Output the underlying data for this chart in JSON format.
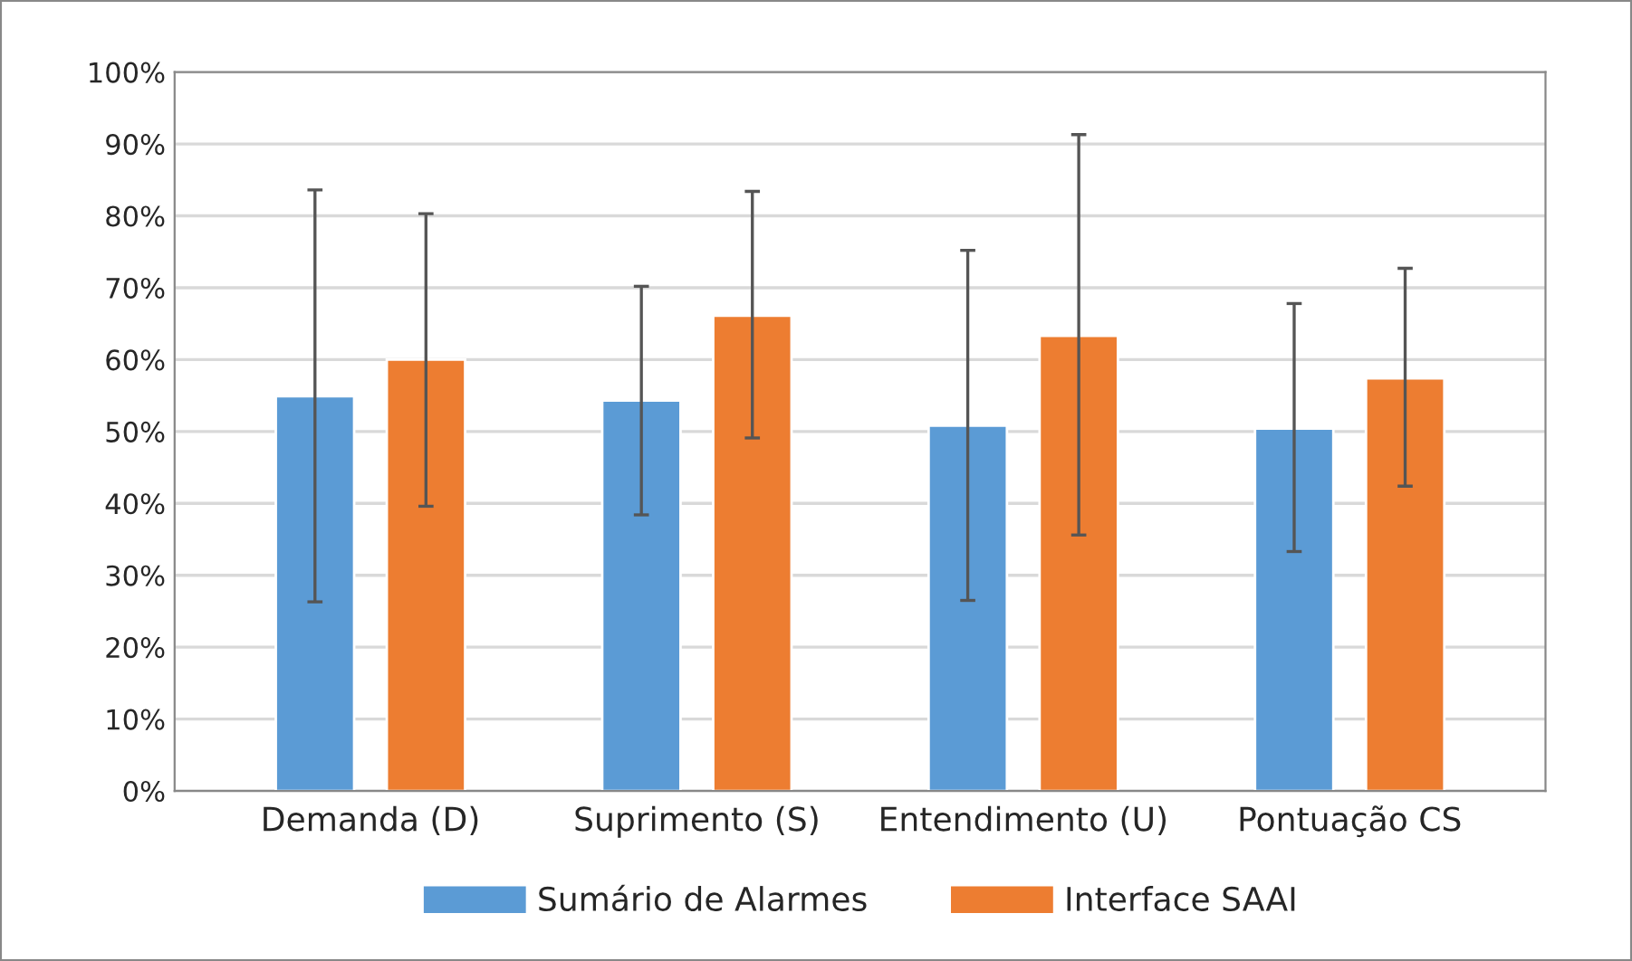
{
  "chart_data": {
    "type": "bar",
    "categories": [
      "Demanda (D)",
      "Suprimento (S)",
      "Entendimento (U)",
      "Pontuação CS"
    ],
    "series": [
      {
        "name": "Sumário de Alarmes",
        "color": "#5b9bd5",
        "values": [
          54.9,
          54.3,
          50.8,
          50.4
        ],
        "errors": [
          [
            26.3,
            83.6
          ],
          [
            38.4,
            70.2
          ],
          [
            26.5,
            75.2
          ],
          [
            33.3,
            67.8
          ]
        ]
      },
      {
        "name": "Interface SAAI",
        "color": "#ed7d31",
        "values": [
          60.0,
          66.1,
          63.3,
          57.4
        ],
        "errors": [
          [
            39.6,
            80.3
          ],
          [
            49.1,
            83.4
          ],
          [
            35.6,
            91.3
          ],
          [
            42.4,
            72.7
          ]
        ]
      }
    ],
    "ylim": [
      0,
      100
    ],
    "yticks": [
      {
        "value": 0,
        "label": "0%"
      },
      {
        "value": 10,
        "label": "10%"
      },
      {
        "value": 20,
        "label": "20%"
      },
      {
        "value": 30,
        "label": "30%"
      },
      {
        "value": 40,
        "label": "40%"
      },
      {
        "value": 50,
        "label": "50%"
      },
      {
        "value": 60,
        "label": "60%"
      },
      {
        "value": 70,
        "label": "70%"
      },
      {
        "value": 80,
        "label": "80%"
      },
      {
        "value": 90,
        "label": "90%"
      },
      {
        "value": 100,
        "label": "100%"
      }
    ],
    "grid": "y",
    "legend": "bottom"
  }
}
